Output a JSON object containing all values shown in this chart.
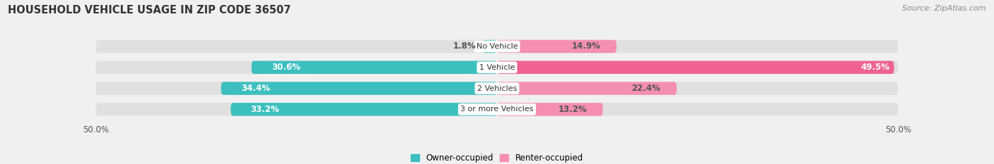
{
  "title": "HOUSEHOLD VEHICLE USAGE IN ZIP CODE 36507",
  "source": "Source: ZipAtlas.com",
  "categories": [
    "No Vehicle",
    "1 Vehicle",
    "2 Vehicles",
    "3 or more Vehicles"
  ],
  "owner_values": [
    1.8,
    30.6,
    34.4,
    33.2
  ],
  "renter_values": [
    14.9,
    49.5,
    22.4,
    13.2
  ],
  "owner_color": "#3DBFBF",
  "renter_color": "#F06292",
  "renter_color_light": "#F48FB1",
  "owner_label": "Owner-occupied",
  "renter_label": "Renter-occupied",
  "background_color": "#f0f0f0",
  "bar_background": "#e0e0e0",
  "title_fontsize": 10.5,
  "source_fontsize": 8,
  "val_fontsize": 8.5,
  "cat_fontsize": 8.0,
  "bar_height": 0.62,
  "xmax": 50.0
}
